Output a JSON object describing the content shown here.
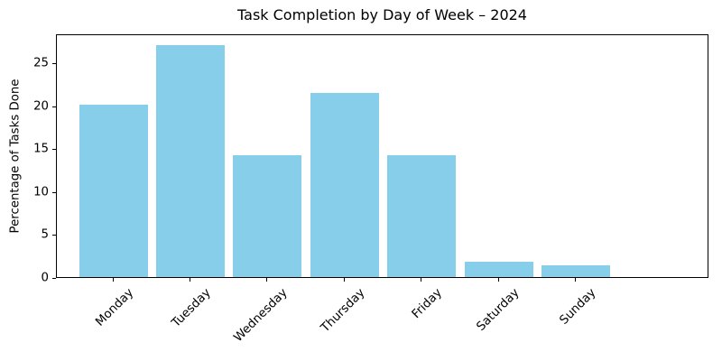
{
  "chart_data": {
    "type": "bar",
    "title": "Task Completion by Day of Week – 2024",
    "xlabel": "",
    "ylabel": "Percentage of Tasks Done",
    "categories": [
      "Monday",
      "Tuesday",
      "Wednesday",
      "Thursday",
      "Friday",
      "Saturday",
      "Sunday"
    ],
    "values": [
      20.1,
      27.0,
      14.2,
      21.5,
      14.2,
      1.8,
      1.4
    ],
    "yticks": [
      0,
      5,
      10,
      15,
      20,
      25
    ],
    "ylim": [
      0,
      28.4
    ],
    "xtick_rotation": 45,
    "grid": false,
    "legend": false,
    "colors": {
      "bar": "#87ceeb",
      "axis": "#000000",
      "text": "#000000",
      "background": "#ffffff"
    }
  }
}
